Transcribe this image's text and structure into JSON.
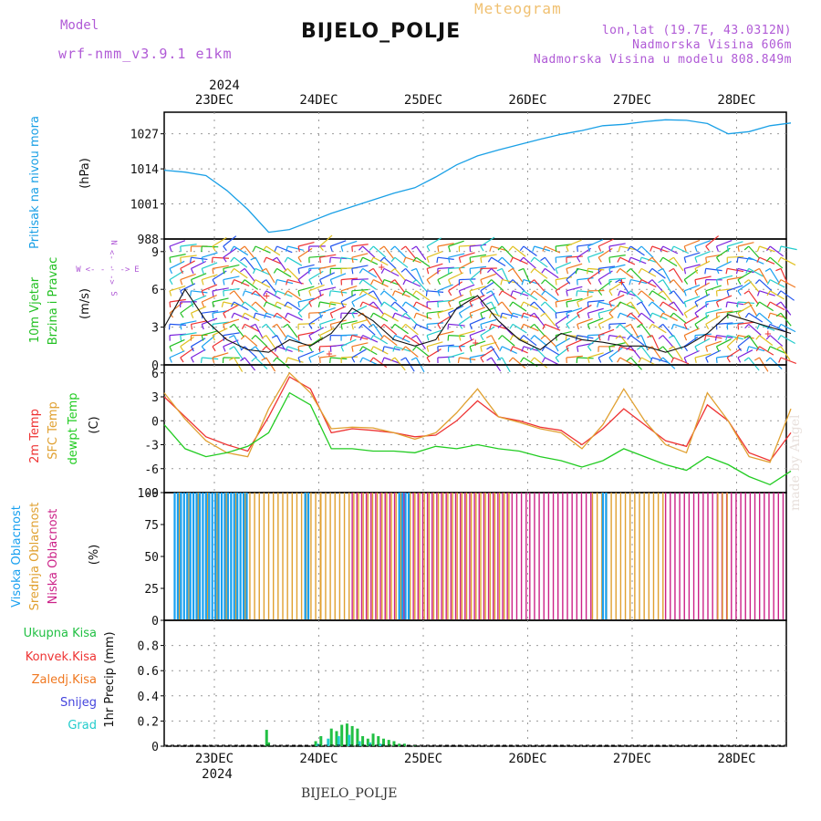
{
  "header": {
    "model_label": "Model",
    "model_name": "wrf-nmm_v3.9.1 e1km",
    "meteogram_label": "Meteogram",
    "station": "BIJELO_POLJE",
    "lonlat": "lon,lat (19.7E, 43.0312N)",
    "elevation": "Nadmorska Visina 606m",
    "model_elevation": "Nadmorska Visina u modelu 808.849m",
    "year": "2024"
  },
  "footer": {
    "station": "BIJELO_POLJE",
    "year": "2024",
    "made_by": "made by Angel"
  },
  "days": [
    "23DEC",
    "24DEC",
    "25DEC",
    "26DEC",
    "27DEC",
    "28DEC"
  ],
  "colors": {
    "pressure": "#1aa0e6",
    "wind": "#22c022",
    "temp2m": "#ee3333",
    "sfc": "#e0a030",
    "dew": "#22cc22",
    "cloud_high": "#18a0f0",
    "cloud_mid": "#e0a030",
    "cloud_low": "#cc2288",
    "precip_total": "#22c044",
    "precip_conv": "#ee3333",
    "precip_frz": "#f07820",
    "snow": "#4444dd",
    "hail": "#22cccc",
    "wind_label": "#b05ad6"
  },
  "panels": {
    "pressure": {
      "labels": [
        "Pritisak na nivou mora",
        "(hPa)"
      ],
      "ticks": [
        "1027",
        "1014",
        "1001",
        "988"
      ]
    },
    "wind": {
      "labels": [
        "10m Vjetar",
        "Brzina i Pravac",
        "(m/s)"
      ],
      "ticks": [
        "9",
        "6",
        "3",
        "0"
      ],
      "compass": {
        "n": "N",
        "s": "S",
        "w": "W",
        "e": "E",
        "top_arrow": "<- - - ->",
        "mid_arrow": "<- - ->"
      }
    },
    "temperature": {
      "labels": [
        "2m Temp",
        "SFC Temp",
        "dewpt Temp",
        "(C)"
      ],
      "ticks": [
        "6",
        "3",
        "0",
        "-3",
        "-6",
        "-9"
      ]
    },
    "clouds": {
      "labels": [
        "Visoka Oblacnost",
        "Srednja Oblacnost",
        "Niska Oblacnost",
        "(%)"
      ],
      "ticks": [
        "100",
        "75",
        "50",
        "25",
        "0"
      ]
    },
    "precip": {
      "legend": [
        "Ukupna Kisa",
        "Konvek.Kisa",
        "Zaledj.Kisa",
        "Snijeg",
        "Grad"
      ],
      "axis_label": "1hr Precip (mm)",
      "ticks": [
        "0.8",
        "0.6",
        "0.4",
        "0.2",
        "0"
      ]
    }
  },
  "chart_data": [
    {
      "type": "line",
      "title": "Pritisak na nivou mora",
      "ylabel": "(hPa)",
      "x_days": [
        0.0,
        0.2,
        0.4,
        0.6,
        0.8,
        1.0,
        1.2,
        1.4,
        1.6,
        1.8,
        2.0,
        2.2,
        2.4,
        2.6,
        2.8,
        3.0,
        3.2,
        3.4,
        3.6,
        3.8,
        4.0,
        4.2,
        4.4,
        4.6,
        4.8,
        5.0,
        5.2,
        5.4,
        5.6,
        5.8,
        6.0
      ],
      "values": [
        1013.5,
        1012.8,
        1011.5,
        1006,
        999,
        990.5,
        991.5,
        994.5,
        997.5,
        1000,
        1002.5,
        1005,
        1007,
        1011,
        1015.5,
        1018.8,
        1021,
        1023,
        1025,
        1026.8,
        1028.2,
        1030,
        1030.5,
        1031.5,
        1032.2,
        1032,
        1030.8,
        1027,
        1027.8,
        1030,
        1031
      ],
      "ylim": [
        988,
        1035
      ],
      "xlim": [
        0,
        6
      ]
    },
    {
      "type": "line",
      "title": "10m Vjetar Brzina i Pravac",
      "ylabel": "(m/s)",
      "x_days": [
        0.0,
        0.2,
        0.4,
        0.6,
        0.8,
        1.0,
        1.2,
        1.4,
        1.6,
        1.8,
        2.0,
        2.2,
        2.4,
        2.6,
        2.8,
        3.0,
        3.2,
        3.4,
        3.6,
        3.8,
        4.0,
        4.2,
        4.4,
        4.6,
        4.8,
        5.0,
        5.2,
        5.4,
        5.6,
        5.8,
        6.0
      ],
      "values": [
        3,
        6,
        3.5,
        2,
        1.2,
        1,
        2,
        1.5,
        2.5,
        4.5,
        3.5,
        2,
        1.5,
        2,
        4.5,
        5.5,
        3.5,
        2,
        1.2,
        2.5,
        2,
        1.8,
        1.5,
        1.5,
        1,
        1.5,
        2.5,
        4,
        3.5,
        3,
        2.5
      ],
      "ylim": [
        0,
        10
      ],
      "xlim": [
        0,
        6
      ]
    },
    {
      "type": "line",
      "title": "Temperature",
      "ylabel": "(C)",
      "x_days": [
        0.0,
        0.2,
        0.4,
        0.6,
        0.8,
        1.0,
        1.2,
        1.4,
        1.6,
        1.8,
        2.0,
        2.2,
        2.4,
        2.6,
        2.8,
        3.0,
        3.2,
        3.4,
        3.6,
        3.8,
        4.0,
        4.2,
        4.4,
        4.6,
        4.8,
        5.0,
        5.2,
        5.4,
        5.6,
        5.8,
        6.0
      ],
      "series": [
        {
          "name": "2m Temp",
          "values": [
            3,
            0.5,
            -2,
            -3,
            -3.8,
            0.5,
            5.5,
            4,
            -1.5,
            -1,
            -1.2,
            -1.5,
            -2,
            -1.8,
            0,
            2.5,
            0.5,
            0,
            -0.8,
            -1.2,
            -3,
            -1,
            1.5,
            -0.5,
            -2.5,
            -3.2,
            2,
            0,
            -4,
            -5,
            -1.5
          ]
        },
        {
          "name": "SFC Temp",
          "values": [
            3.5,
            0.2,
            -2.5,
            -4,
            -4.5,
            1.5,
            6,
            3.5,
            -1,
            -0.8,
            -0.9,
            -1.5,
            -2.3,
            -1.5,
            1,
            4,
            0.5,
            -0.2,
            -1,
            -1.5,
            -3.5,
            -0.5,
            4,
            0,
            -3,
            -4,
            3.5,
            0,
            -4.5,
            -5.2,
            1.5
          ]
        },
        {
          "name": "dewpt Temp",
          "values": [
            -0.5,
            -3.5,
            -4.5,
            -4,
            -3.2,
            -1.5,
            3.5,
            2,
            -3.5,
            -3.5,
            -3.8,
            -3.8,
            -4,
            -3.2,
            -3.5,
            -3,
            -3.5,
            -3.8,
            -4.5,
            -5,
            -5.8,
            -5,
            -3.5,
            -4.5,
            -5.5,
            -6.2,
            -4.5,
            -5.5,
            -7,
            -8,
            -6.3
          ]
        }
      ],
      "ylim": [
        -9,
        7
      ],
      "xlim": [
        0,
        6
      ]
    },
    {
      "type": "bar",
      "title": "Oblacnost",
      "ylabel": "(%)",
      "series": [
        {
          "name": "Visoka Oblacnost",
          "segments_days": [
            [
              0.1,
              0.8
            ],
            [
              1.35,
              1.4
            ],
            [
              2.25,
              2.35
            ],
            [
              4.2,
              4.25
            ]
          ],
          "value": 100
        },
        {
          "name": "Srednja Oblacnost",
          "segments_days": [
            [
              0.1,
              1.5
            ],
            [
              1.5,
              3.3
            ],
            [
              4.1,
              4.8
            ],
            [
              5.3,
              5.4
            ]
          ],
          "value": 100
        },
        {
          "name": "Niska Oblacnost",
          "segments_days": [
            [
              1.8,
              3.5
            ],
            [
              3.5,
              4.1
            ],
            [
              4.8,
              6.0
            ]
          ],
          "value": 100
        }
      ],
      "ylim": [
        0,
        100
      ],
      "xlim": [
        0,
        6
      ]
    },
    {
      "type": "bar",
      "title": "1hr Precip",
      "ylabel": "1hr Precip (mm)",
      "series": [
        {
          "name": "Ukupna Kisa",
          "x_days": [
            0.98,
            1.0,
            1.45,
            1.5,
            1.6,
            1.65,
            1.7,
            1.75,
            1.8,
            1.85,
            1.9,
            1.95,
            2.0,
            2.05,
            2.1,
            2.15,
            2.2,
            2.25,
            2.3,
            2.4
          ],
          "values": [
            0.13,
            0.03,
            0.04,
            0.08,
            0.14,
            0.12,
            0.17,
            0.18,
            0.16,
            0.14,
            0.08,
            0.06,
            0.1,
            0.08,
            0.06,
            0.05,
            0.04,
            0.02,
            0.02,
            0.01
          ]
        },
        {
          "name": "Grad",
          "x_days": [
            1.47,
            1.57,
            1.67,
            1.77,
            1.87,
            1.97,
            2.07
          ],
          "values": [
            0.02,
            0.06,
            0.08,
            0.09,
            0.04,
            0.03,
            0.02
          ]
        }
      ],
      "ylim": [
        0,
        1
      ],
      "xlim": [
        0,
        6
      ]
    }
  ]
}
